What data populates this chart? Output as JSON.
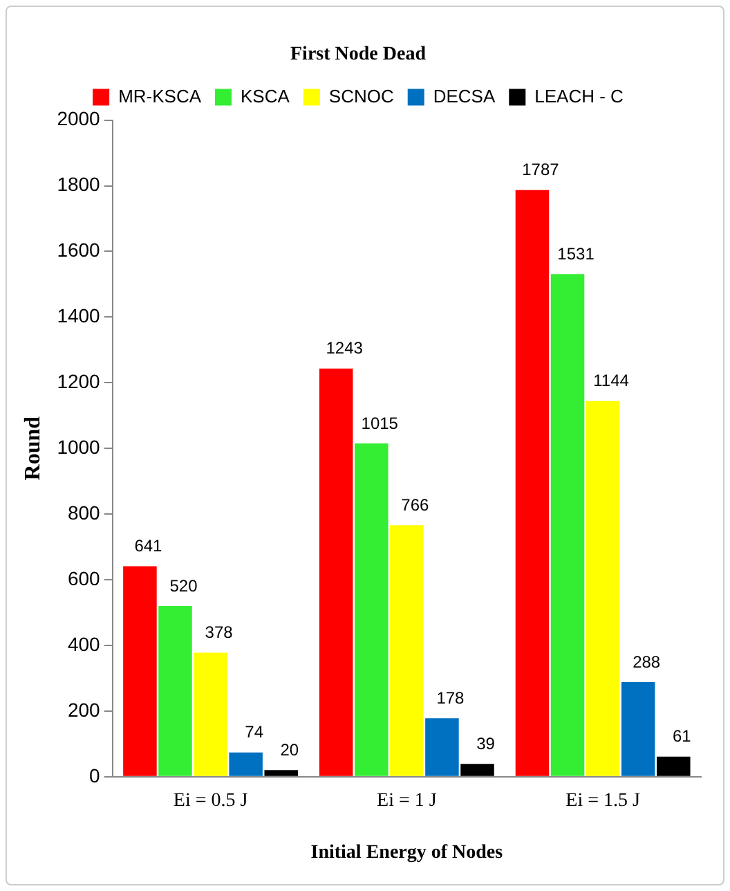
{
  "chart_data": {
    "type": "bar",
    "title": "First Node Dead",
    "xlabel": "Initial Energy of Nodes",
    "ylabel": "Round",
    "categories": [
      "Ei = 0.5 J",
      "Ei = 1 J",
      "Ei = 1.5 J"
    ],
    "series": [
      {
        "name": "MR-KSCA",
        "color": "#ff0000",
        "values": [
          641,
          1243,
          1787
        ]
      },
      {
        "name": "KSCA",
        "color": "#33ee33",
        "values": [
          520,
          1015,
          1531
        ]
      },
      {
        "name": "SCNOC",
        "color": "#ffff00",
        "values": [
          378,
          766,
          1144
        ]
      },
      {
        "name": "DECSA",
        "color": "#0070c0",
        "values": [
          74,
          178,
          288
        ]
      },
      {
        "name": "LEACH - C",
        "color": "#000000",
        "values": [
          20,
          39,
          61
        ]
      }
    ],
    "ylim": [
      0,
      2000
    ],
    "yticks": [
      0,
      200,
      400,
      600,
      800,
      1000,
      1200,
      1400,
      1600,
      1800,
      2000
    ],
    "grid": false,
    "legend": "top",
    "data_labels": true
  }
}
